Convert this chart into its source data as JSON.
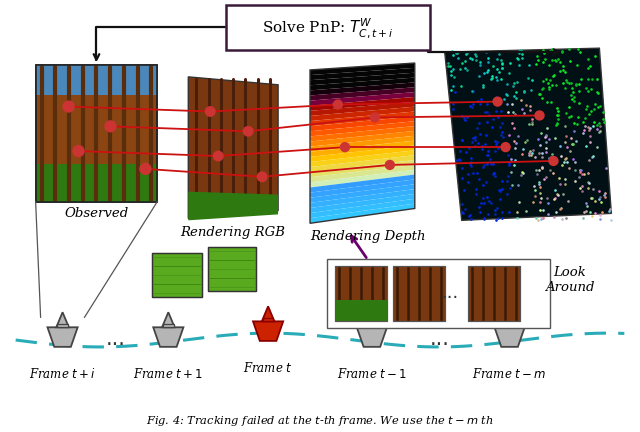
{
  "bg_color": "#ffffff",
  "box_text": "Solve PnP: $T^W_{C,t+i}$",
  "labels": {
    "observed": "Observed",
    "rendering_rgb": "Rendering RGB",
    "rendering_depth": "Rendering Depth",
    "look_around": "Look\nAround",
    "frame_tpi": "Frame $t+i$",
    "frame_tp1": "Frame $t+1$",
    "frame_t": "Frame $t$",
    "frame_tm1": "Frame $t-1$",
    "frame_tmm": "Frame $t-m$"
  },
  "dashed_color": "#2aacb8",
  "arrow_color": "#6B006B",
  "keypoint_color": "#cc3333",
  "line_color": "#cc1111",
  "box_edge_color": "#3a1a3a",
  "caption": "Fig. 4: Tracking failed at the $t$-th frame. We use the $t-m$ th"
}
